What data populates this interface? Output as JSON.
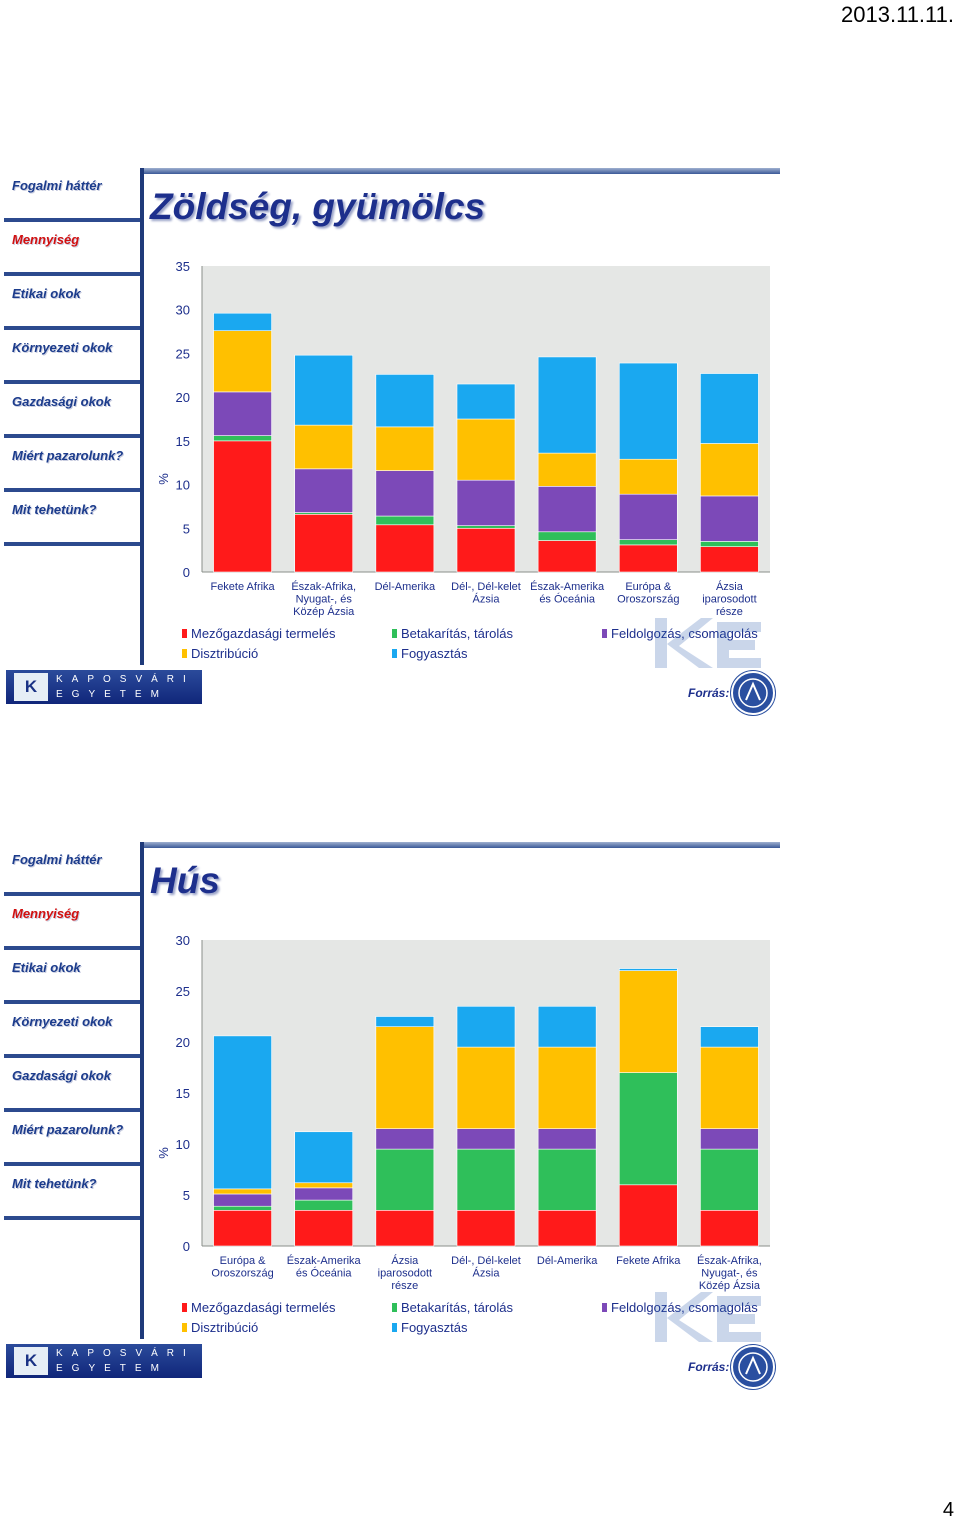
{
  "header": {
    "date": "2013.11.11."
  },
  "footer": {
    "page_number": "4"
  },
  "nav": [
    "Fogalmi háttér",
    "Mennyiség",
    "Etikai okok",
    "Környezeti okok",
    "Gazdasági okok",
    "Miért pazarolunk?",
    "Mit tehetünk?"
  ],
  "nav_active": "Mennyiség",
  "legend": [
    {
      "label": "Mezőgazdasági termelés",
      "color": "#ff1a1a"
    },
    {
      "label": "Betakarítás, tárolás",
      "color": "#2fbf5a"
    },
    {
      "label": "Feldolgozás, csomagolás",
      "color": "#7c49b8"
    },
    {
      "label": "Disztribúció",
      "color": "#ffc000"
    },
    {
      "label": "Fogyasztás",
      "color": "#1aa8f0"
    }
  ],
  "logo": {
    "mark": "K",
    "line1": "KAPOSVÁRI",
    "line2": "EGYETEM"
  },
  "source_label": "Forrás:",
  "slides": [
    {
      "title": "Zöldség, gyümölcs",
      "chart_data": {
        "type": "bar",
        "stacked": true,
        "ylabel": "%",
        "ylim": [
          0,
          35
        ],
        "yticks": [
          0,
          5,
          10,
          15,
          20,
          25,
          30,
          35
        ],
        "categories": [
          [
            "Fekete  Afrika"
          ],
          [
            "Észak-Afrika,",
            "Nyugat-, és",
            "Közép Ázsia"
          ],
          [
            "Dél-Amerika"
          ],
          [
            "Dél-, Dél-kelet",
            "Ázsia"
          ],
          [
            "Észak-Amerika",
            "és Óceánia"
          ],
          [
            "Európa &",
            "Oroszország"
          ],
          [
            "Ázsia",
            "iparosodott",
            "része"
          ]
        ],
        "series": [
          {
            "name": "Mezőgazdasági termelés",
            "values": [
              15.0,
              6.6,
              5.4,
              5.0,
              3.6,
              3.1,
              2.9
            ]
          },
          {
            "name": "Betakarítás, tárolás",
            "values": [
              0.6,
              0.2,
              1.0,
              0.3,
              1.0,
              0.6,
              0.6
            ]
          },
          {
            "name": "Feldolgozás, csomagolás",
            "values": [
              5.0,
              5.0,
              5.2,
              5.2,
              5.2,
              5.2,
              5.2
            ]
          },
          {
            "name": "Disztribúció",
            "values": [
              7.0,
              5.0,
              5.0,
              7.0,
              3.8,
              4.0,
              6.0
            ]
          },
          {
            "name": "Fogyasztás",
            "values": [
              2.0,
              8.0,
              6.0,
              4.0,
              11.0,
              11.0,
              8.0
            ]
          }
        ]
      }
    },
    {
      "title": "Hús",
      "chart_data": {
        "type": "bar",
        "stacked": true,
        "ylabel": "%",
        "ylim": [
          0,
          30
        ],
        "yticks": [
          0,
          5,
          10,
          15,
          20,
          25,
          30
        ],
        "categories": [
          [
            "Európa &",
            "Oroszország"
          ],
          [
            "Észak-Amerika",
            "és Óceánia"
          ],
          [
            "Ázsia",
            "iparosodott",
            "része"
          ],
          [
            "Dél-, Dél-kelet",
            "Ázsia"
          ],
          [
            "Dél-Amerika"
          ],
          [
            "Fekete  Afrika"
          ],
          [
            "Észak-Afrika,",
            "Nyugat-, és",
            "Közép Ázsia"
          ]
        ],
        "series": [
          {
            "name": "Mezőgazdasági termelés",
            "values": [
              3.5,
              3.5,
              3.5,
              3.5,
              3.5,
              6.0,
              3.5
            ]
          },
          {
            "name": "Betakarítás, tárolás",
            "values": [
              0.4,
              1.0,
              6.0,
              6.0,
              6.0,
              11.0,
              6.0
            ]
          },
          {
            "name": "Feldolgozás, csomagolás",
            "values": [
              1.2,
              1.2,
              2.0,
              2.0,
              2.0,
              0.0,
              2.0
            ]
          },
          {
            "name": "Disztribúció",
            "values": [
              0.5,
              0.5,
              10.0,
              8.0,
              8.0,
              10.0,
              8.0
            ]
          },
          {
            "name": "Fogyasztás",
            "values": [
              15.0,
              5.0,
              1.0,
              4.0,
              4.0,
              0.2,
              2.0
            ]
          }
        ]
      }
    }
  ]
}
